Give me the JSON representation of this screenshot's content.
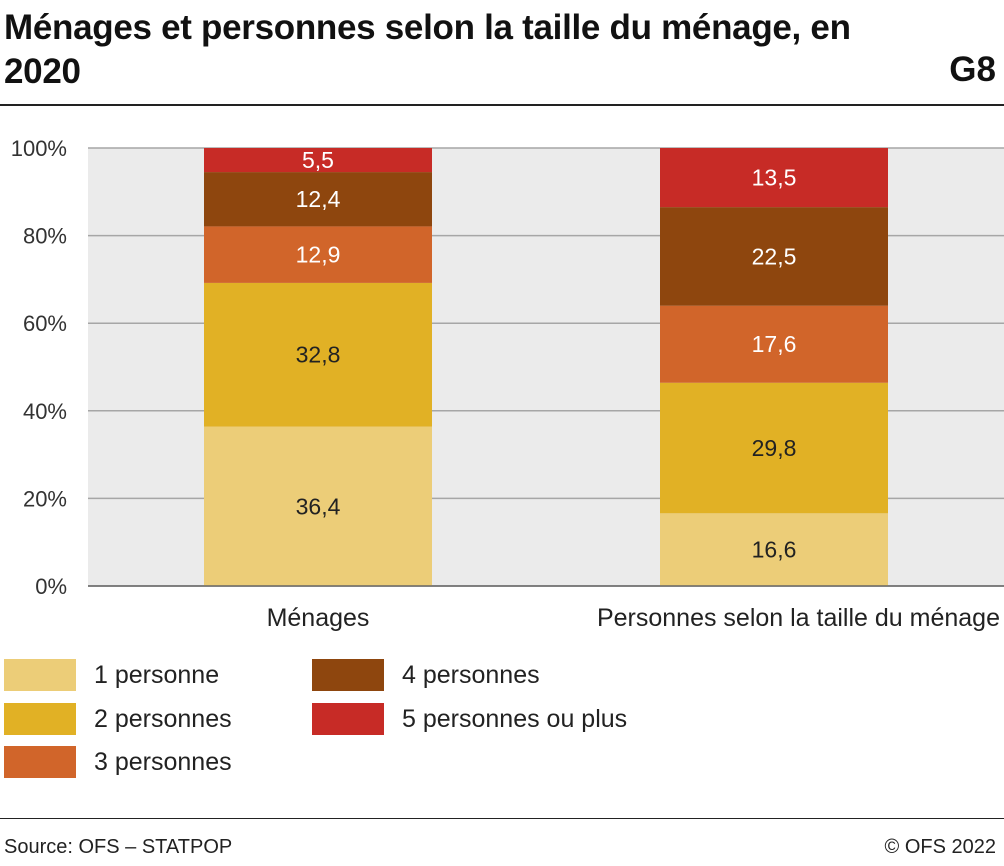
{
  "header": {
    "title": "Ménages et personnes selon la taille du ménage, en 2020",
    "chart_id": "G8"
  },
  "footer": {
    "source": "Source: OFS – STATPOP",
    "copyright": "© OFS 2022"
  },
  "colors": {
    "1_personne": "#eccd78",
    "2_personnes": "#e1b125",
    "3_personnes": "#d1652a",
    "4_personnes": "#8e460e",
    "5_personnes_ou_plus": "#c72b26",
    "plot_background": "#ebebeb",
    "gridline": "#a6a6a6"
  },
  "chart_data": {
    "type": "bar",
    "stacked": true,
    "title": "Ménages et personnes selon la taille du ménage, en 2020",
    "categories": [
      "Ménages",
      "Personnes selon la taille du ménage"
    ],
    "series": [
      {
        "name": "1 personne",
        "values": [
          36.4,
          16.6
        ],
        "labels": [
          "36,4",
          "16,6"
        ],
        "color": "#eccd78",
        "label_color": "#222222"
      },
      {
        "name": "2 personnes",
        "values": [
          32.8,
          29.8
        ],
        "labels": [
          "32,8",
          "29,8"
        ],
        "color": "#e1b125",
        "label_color": "#222222"
      },
      {
        "name": "3 personnes",
        "values": [
          12.9,
          17.6
        ],
        "labels": [
          "12,9",
          "17,6"
        ],
        "color": "#d1652a",
        "label_color": "#ffffff"
      },
      {
        "name": "4 personnes",
        "values": [
          12.4,
          22.5
        ],
        "labels": [
          "12,4",
          "22,5"
        ],
        "color": "#8e460e",
        "label_color": "#ffffff"
      },
      {
        "name": "5 personnes ou plus",
        "values": [
          5.5,
          13.5
        ],
        "labels": [
          "5,5",
          "13,5"
        ],
        "color": "#c72b26",
        "label_color": "#ffffff"
      }
    ],
    "ylim": [
      0,
      100
    ],
    "yticks": [
      0,
      20,
      40,
      60,
      80,
      100
    ],
    "ytick_labels": [
      "0%",
      "20%",
      "40%",
      "60%",
      "80%",
      "100%"
    ],
    "grid": true,
    "legend_position": "bottom"
  }
}
